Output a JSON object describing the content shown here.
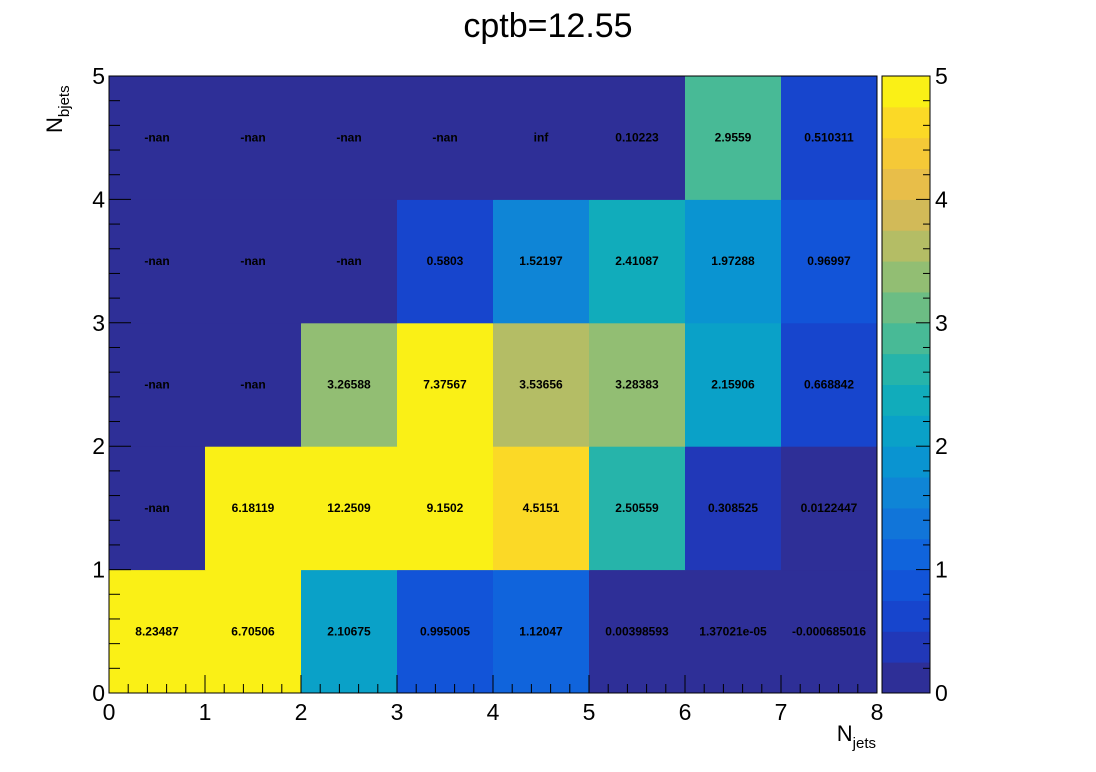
{
  "chart_data": {
    "type": "heatmap",
    "title": "cptb=12.55",
    "xlabel": "N",
    "xlabel_sub": "jets",
    "ylabel": "N",
    "ylabel_sub": "bjets",
    "x_edges": [
      0,
      1,
      2,
      3,
      4,
      5,
      6,
      7,
      8
    ],
    "y_edges": [
      0,
      1,
      2,
      3,
      4,
      5
    ],
    "xlim": [
      0,
      8
    ],
    "ylim": [
      0,
      5
    ],
    "x_ticks": [
      "0",
      "1",
      "2",
      "3",
      "4",
      "5",
      "6",
      "7",
      "8"
    ],
    "y_ticks": [
      "0",
      "1",
      "2",
      "3",
      "4",
      "5"
    ],
    "z_range": [
      0,
      5
    ],
    "colorbar_ticks": [
      "0",
      "1",
      "2",
      "3",
      "4",
      "5"
    ],
    "colormap": "parula",
    "rows_bottom_to_top": [
      [
        "8.23487",
        "6.70506",
        "2.10675",
        "0.995005",
        "1.12047",
        "0.00398593",
        "1.37021e-05",
        "-0.000685016"
      ],
      [
        "-nan",
        "6.18119",
        "12.2509",
        "9.1502",
        "4.5151",
        "2.50559",
        "0.308525",
        "0.0122447"
      ],
      [
        "-nan",
        "-nan",
        "3.26588",
        "7.37567",
        "3.53656",
        "3.28383",
        "2.15906",
        "0.668842"
      ],
      [
        "-nan",
        "-nan",
        "-nan",
        "0.5803",
        "1.52197",
        "2.41087",
        "1.97288",
        "0.96997"
      ],
      [
        "-nan",
        "-nan",
        "-nan",
        "-nan",
        "inf",
        "0.10223",
        "2.9559",
        "0.510311"
      ]
    ]
  }
}
